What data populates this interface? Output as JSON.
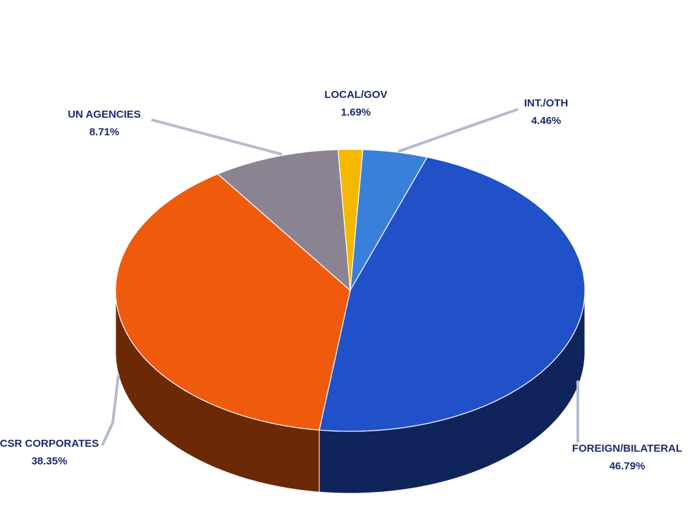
{
  "chart_data": {
    "type": "pie",
    "categories": [
      "LOCAL/GOV",
      "INT./OTH",
      "FOREIGN/BILATERAL",
      "CSR CORPORATES",
      "UN AGENCIES"
    ],
    "values": [
      1.69,
      4.46,
      46.79,
      38.35,
      8.71
    ],
    "value_labels": [
      "1.69%",
      "4.46%",
      "46.79%",
      "38.35%",
      "8.71%"
    ],
    "colors": [
      "#f5b800",
      "#3a80da",
      "#2151c9",
      "#ef5a0d",
      "#8b8391"
    ]
  }
}
